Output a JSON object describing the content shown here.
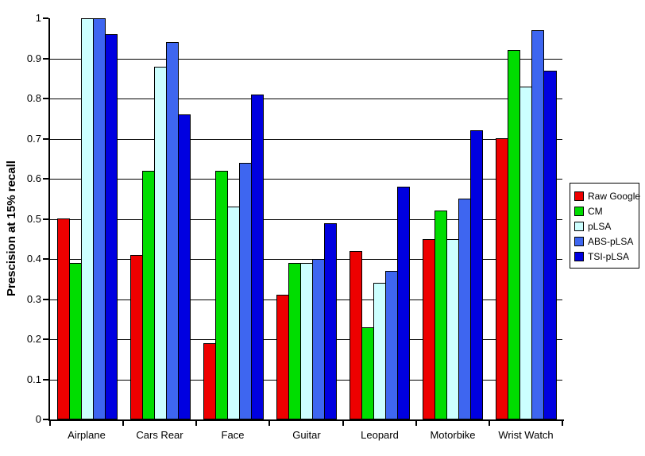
{
  "chart_data": {
    "type": "bar",
    "title": "",
    "xlabel": "",
    "ylabel": "Prescision at 15% recall",
    "ylim": [
      0,
      1
    ],
    "ytick_step": 0.1,
    "ytick_labels": [
      "0",
      "0.1",
      "0.2",
      "0.3",
      "0.4",
      "0.5",
      "0.6",
      "0.7",
      "0.8",
      "0.9",
      "1"
    ],
    "grid": "horizontal",
    "legend_position": "right-outside",
    "categories": [
      "Airplane",
      "Cars Rear",
      "Face",
      "Guitar",
      "Leopard",
      "Motorbike",
      "Wrist Watch"
    ],
    "series": [
      {
        "name": "Raw Google",
        "color": "#ee0000",
        "values": [
          0.5,
          0.41,
          0.19,
          0.31,
          0.42,
          0.45,
          0.7
        ]
      },
      {
        "name": "CM",
        "color": "#00dd00",
        "values": [
          0.39,
          0.62,
          0.62,
          0.39,
          0.23,
          0.52,
          0.92
        ]
      },
      {
        "name": "pLSA",
        "color": "#ccffff",
        "values": [
          1.0,
          0.88,
          0.53,
          0.39,
          0.34,
          0.45,
          0.83
        ]
      },
      {
        "name": "ABS-pLSA",
        "color": "#3e66f0",
        "values": [
          1.0,
          0.94,
          0.64,
          0.4,
          0.37,
          0.55,
          0.97
        ]
      },
      {
        "name": "TSI-pLSA",
        "color": "#0000e0",
        "values": [
          0.96,
          0.76,
          0.81,
          0.49,
          0.58,
          0.72,
          0.87
        ]
      }
    ]
  }
}
